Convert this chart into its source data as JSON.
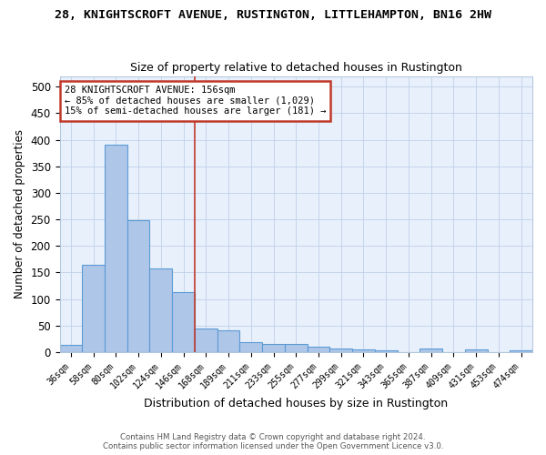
{
  "title1": "28, KNIGHTSCROFT AVENUE, RUSTINGTON, LITTLEHAMPTON, BN16 2HW",
  "title2": "Size of property relative to detached houses in Rustington",
  "xlabel": "Distribution of detached houses by size in Rustington",
  "ylabel": "Number of detached properties",
  "categories": [
    "36sqm",
    "58sqm",
    "80sqm",
    "102sqm",
    "124sqm",
    "146sqm",
    "168sqm",
    "189sqm",
    "211sqm",
    "233sqm",
    "255sqm",
    "277sqm",
    "299sqm",
    "321sqm",
    "343sqm",
    "365sqm",
    "387sqm",
    "409sqm",
    "431sqm",
    "453sqm",
    "474sqm"
  ],
  "values": [
    13,
    165,
    390,
    248,
    157,
    113,
    44,
    41,
    18,
    15,
    15,
    10,
    6,
    5,
    3,
    0,
    7,
    0,
    5,
    0,
    3
  ],
  "bar_color": "#aec6e8",
  "bar_edge_color": "#5b9bd5",
  "vline_x": 5.5,
  "vline_color": "#c0392b",
  "annotation_lines": [
    "28 KNIGHTSCROFT AVENUE: 156sqm",
    "← 85% of detached houses are smaller (1,029)",
    "15% of semi-detached houses are larger (181) →"
  ],
  "annotation_box_color": "#c0392b",
  "ylim": [
    0,
    520
  ],
  "yticks": [
    0,
    50,
    100,
    150,
    200,
    250,
    300,
    350,
    400,
    450,
    500
  ],
  "bg_color": "#e8f0fb",
  "footer1": "Contains HM Land Registry data © Crown copyright and database right 2024.",
  "footer2": "Contains public sector information licensed under the Open Government Licence v3.0."
}
